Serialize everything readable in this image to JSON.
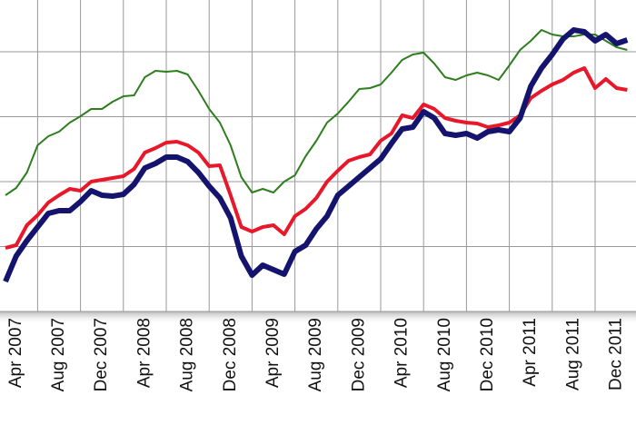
{
  "chart_data": {
    "type": "line",
    "categories": [
      null,
      "Apr 2007",
      null,
      null,
      null,
      "Aug 2007",
      null,
      null,
      null,
      "Dec 2007",
      null,
      null,
      null,
      "Apr 2008",
      null,
      null,
      null,
      "Aug 2008",
      null,
      null,
      null,
      "Dec 2008",
      null,
      null,
      null,
      "Apr 2009",
      null,
      null,
      null,
      "Aug 2009",
      null,
      null,
      null,
      "Dec 2009",
      null,
      null,
      null,
      "Apr 2010",
      null,
      null,
      null,
      "Aug 2010",
      null,
      null,
      null,
      "Dec 2010",
      null,
      null,
      null,
      "Apr 2011",
      null,
      null,
      null,
      "Aug 2011",
      null,
      null,
      null,
      "Dec 2011",
      null
    ],
    "series": [
      {
        "color": "#2e7d1e",
        "values": [
          128,
          136,
          153,
          183,
          193,
          198,
          208,
          215,
          223,
          223,
          231,
          237,
          238,
          258,
          265,
          264,
          265,
          261,
          243,
          223,
          208,
          183,
          148,
          131,
          135,
          131,
          143,
          150,
          171,
          188,
          208,
          218,
          231,
          245,
          246,
          250,
          263,
          277,
          283,
          285,
          273,
          258,
          255,
          260,
          263,
          260,
          255,
          271,
          288,
          298,
          310,
          305,
          303,
          303,
          305,
          305,
          298,
          291,
          288
        ]
      },
      {
        "color": "#e8182a",
        "values": [
          70,
          73,
          95,
          106,
          120,
          128,
          135,
          133,
          143,
          145,
          147,
          149,
          157,
          175,
          180,
          186,
          187,
          183,
          175,
          160,
          161,
          128,
          93,
          88,
          93,
          95,
          85,
          105,
          113,
          125,
          143,
          155,
          166,
          170,
          173,
          188,
          196,
          216,
          213,
          228,
          223,
          213,
          210,
          208,
          207,
          203,
          205,
          208,
          216,
          235,
          243,
          250,
          255,
          263,
          268,
          246,
          256,
          246,
          244
        ]
      },
      {
        "color": "#14146e",
        "values": [
          33,
          61,
          78,
          93,
          108,
          111,
          111,
          121,
          133,
          128,
          127,
          129,
          140,
          158,
          163,
          170,
          170,
          165,
          153,
          138,
          125,
          103,
          61,
          40,
          51,
          46,
          41,
          66,
          73,
          91,
          105,
          128,
          138,
          148,
          158,
          168,
          185,
          201,
          203,
          220,
          213,
          196,
          194,
          196,
          191,
          198,
          200,
          198,
          213,
          248,
          268,
          283,
          300,
          310,
          308,
          298,
          305,
          295,
          299
        ]
      }
    ],
    "ylim": [
      0,
      343
    ],
    "yticks": [
      0,
      71.5,
      143,
      214.5,
      286
    ],
    "grid": true
  }
}
